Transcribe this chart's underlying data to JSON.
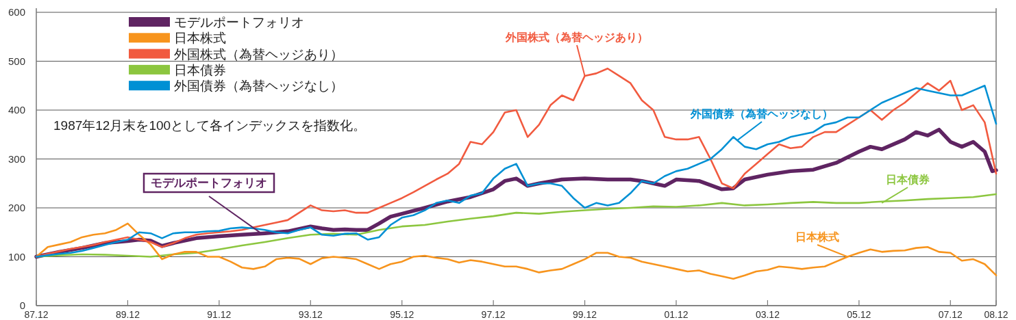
{
  "chart_data": {
    "type": "line",
    "xlim": [
      "1987-12",
      "2008-12"
    ],
    "ylim": [
      0,
      600
    ],
    "yticks": [
      0,
      100,
      200,
      300,
      400,
      500,
      600
    ],
    "xticks": [
      {
        "value": "1987-12",
        "label": "87.12"
      },
      {
        "value": "1989-12",
        "label": "89.12"
      },
      {
        "value": "1991-12",
        "label": "91.12"
      },
      {
        "value": "1993-12",
        "label": "93.12"
      },
      {
        "value": "1995-12",
        "label": "95.12"
      },
      {
        "value": "1997-12",
        "label": "97.12"
      },
      {
        "value": "1999-12",
        "label": "99.12"
      },
      {
        "value": "2001-12",
        "label": "01.12"
      },
      {
        "value": "2003-12",
        "label": "03.12"
      },
      {
        "value": "2005-12",
        "label": "05.12"
      },
      {
        "value": "2007-12",
        "label": "07.12"
      },
      {
        "value": "2008-12",
        "label": "08.12"
      }
    ],
    "grid": "y",
    "legend": "top left",
    "marker": "none",
    "line_style": "solid",
    "annotations": [
      "1987年12月末を100として各インデックスを指数化。",
      {
        "text": "モデルポートフォリオ",
        "x": "1992-11",
        "y": 148
      },
      {
        "text": "外国株式（為替ヘッジあり）",
        "x": "1999-12",
        "y": 470
      },
      {
        "text": "外国債券（為替ヘッジなし）",
        "x": "2003-04",
        "y": 338
      },
      {
        "text": "日本債券",
        "x": "2006-06",
        "y": 210
      },
      {
        "text": "日本株式",
        "x": "2005-09",
        "y": 100
      }
    ],
    "series": [
      {
        "name": "モデルポートフォリオ",
        "color": "#5f2462",
        "x": [
          "1987-12",
          "1988-06",
          "1988-12",
          "1989-06",
          "1989-12",
          "1990-03",
          "1990-06",
          "1990-09",
          "1990-12",
          "1991-06",
          "1991-12",
          "1992-06",
          "1992-12",
          "1993-06",
          "1993-12",
          "1994-03",
          "1994-06",
          "1994-09",
          "1994-12",
          "1995-03",
          "1995-06",
          "1995-09",
          "1995-12",
          "1996-06",
          "1996-12",
          "1997-06",
          "1997-12",
          "1998-03",
          "1998-06",
          "1998-09",
          "1998-12",
          "1999-06",
          "1999-12",
          "2000-06",
          "2000-12",
          "2001-03",
          "2001-06",
          "2001-09",
          "2001-12",
          "2002-06",
          "2002-12",
          "2003-03",
          "2003-06",
          "2003-12",
          "2004-06",
          "2004-12",
          "2005-06",
          "2005-12",
          "2006-03",
          "2006-06",
          "2006-12",
          "2007-03",
          "2007-06",
          "2007-09",
          "2007-12",
          "2008-03",
          "2008-06",
          "2008-09",
          "2008-11",
          "2008-12"
        ],
        "values": [
          100,
          110,
          118,
          128,
          132,
          135,
          133,
          122,
          128,
          138,
          142,
          145,
          148,
          152,
          162,
          158,
          155,
          156,
          155,
          155,
          168,
          182,
          188,
          200,
          213,
          222,
          238,
          255,
          260,
          245,
          250,
          258,
          260,
          258,
          258,
          255,
          250,
          245,
          258,
          255,
          238,
          240,
          258,
          268,
          275,
          278,
          292,
          315,
          325,
          320,
          340,
          355,
          348,
          360,
          335,
          325,
          335,
          315,
          275,
          277
        ]
      },
      {
        "name": "日本株式",
        "color": "#f7941d",
        "values": [
          100,
          120,
          125,
          130,
          140,
          145,
          148,
          155,
          168,
          145,
          125,
          95,
          105,
          110,
          110,
          100,
          100,
          90,
          78,
          75,
          80,
          95,
          98,
          96,
          85,
          97,
          100,
          98,
          95,
          85,
          75,
          85,
          90,
          100,
          102,
          98,
          95,
          88,
          93,
          90,
          85,
          80,
          80,
          75,
          68,
          72,
          75,
          85,
          95,
          108,
          108,
          100,
          98,
          90,
          85,
          80,
          75,
          70,
          72,
          65,
          60,
          55,
          62,
          70,
          73,
          80,
          78,
          75,
          78,
          80,
          90,
          100,
          108,
          115,
          110,
          112,
          113,
          118,
          120,
          110,
          108,
          92,
          95,
          85,
          62
        ]
      },
      {
        "name": "外国株式（為替ヘッジあり）",
        "color": "#f15a3f",
        "values": [
          100,
          106,
          111,
          116,
          120,
          124,
          130,
          135,
          140,
          135,
          130,
          120,
          128,
          138,
          145,
          148,
          150,
          152,
          155,
          160,
          165,
          170,
          175,
          190,
          205,
          195,
          193,
          195,
          190,
          190,
          200,
          210,
          220,
          232,
          245,
          258,
          270,
          290,
          335,
          330,
          355,
          395,
          400,
          345,
          370,
          410,
          430,
          420,
          470,
          475,
          485,
          470,
          455,
          420,
          400,
          345,
          340,
          340,
          345,
          300,
          250,
          240,
          270,
          290,
          310,
          330,
          322,
          325,
          345,
          355,
          355,
          370,
          385,
          400,
          380,
          400,
          415,
          435,
          455,
          440,
          460,
          400,
          410,
          375,
          270
        ]
      },
      {
        "name": "日本債券",
        "color": "#8cc63f",
        "x": [
          "1987-12",
          "1988-06",
          "1988-12",
          "1989-06",
          "1989-12",
          "1990-06",
          "1990-12",
          "1991-06",
          "1991-12",
          "1992-06",
          "1992-12",
          "1993-06",
          "1993-12",
          "1994-06",
          "1994-12",
          "1995-06",
          "1995-12",
          "1996-06",
          "1996-12",
          "1997-06",
          "1997-12",
          "1998-06",
          "1998-12",
          "1999-06",
          "1999-12",
          "2000-06",
          "2000-12",
          "2001-06",
          "2001-12",
          "2002-06",
          "2002-12",
          "2003-06",
          "2003-12",
          "2004-06",
          "2004-12",
          "2005-06",
          "2005-12",
          "2006-06",
          "2006-12",
          "2007-06",
          "2007-12",
          "2008-06",
          "2008-12"
        ],
        "values": [
          100,
          103,
          105,
          104,
          102,
          100,
          105,
          108,
          115,
          123,
          130,
          138,
          145,
          147,
          145,
          155,
          162,
          165,
          172,
          178,
          183,
          190,
          188,
          192,
          195,
          198,
          200,
          203,
          202,
          205,
          210,
          205,
          207,
          210,
          212,
          210,
          210,
          213,
          215,
          218,
          220,
          222,
          228
        ]
      },
      {
        "name": "外国債券（為替ヘッジなし）",
        "color": "#0090d4",
        "values": [
          100,
          103,
          106,
          108,
          112,
          118,
          124,
          130,
          135,
          150,
          148,
          138,
          148,
          150,
          150,
          152,
          153,
          158,
          160,
          158,
          155,
          150,
          148,
          155,
          160,
          145,
          143,
          147,
          148,
          135,
          140,
          165,
          180,
          185,
          195,
          210,
          215,
          210,
          225,
          230,
          260,
          280,
          290,
          245,
          250,
          250,
          245,
          220,
          200,
          210,
          205,
          210,
          230,
          255,
          250,
          265,
          275,
          280,
          290,
          300,
          320,
          345,
          325,
          320,
          330,
          335,
          345,
          350,
          355,
          370,
          375,
          385,
          385,
          400,
          415,
          425,
          435,
          445,
          440,
          435,
          430,
          430,
          440,
          450,
          372
        ]
      }
    ],
    "x": [
      "1987-12",
      "1988-03",
      "1988-06",
      "1988-09",
      "1988-12",
      "1989-03",
      "1989-06",
      "1989-09",
      "1989-12",
      "1990-03",
      "1990-06",
      "1990-09",
      "1990-12",
      "1991-03",
      "1991-06",
      "1991-09",
      "1991-12",
      "1992-03",
      "1992-06",
      "1992-09",
      "1992-12",
      "1993-03",
      "1993-06",
      "1993-09",
      "1993-12",
      "1994-03",
      "1994-06",
      "1994-09",
      "1994-12",
      "1995-03",
      "1995-06",
      "1995-09",
      "1995-12",
      "1996-03",
      "1996-06",
      "1996-09",
      "1996-12",
      "1997-03",
      "1997-06",
      "1997-09",
      "1997-12",
      "1998-03",
      "1998-06",
      "1998-09",
      "1998-12",
      "1999-03",
      "1999-06",
      "1999-09",
      "1999-12",
      "2000-03",
      "2000-06",
      "2000-09",
      "2000-12",
      "2001-03",
      "2001-06",
      "2001-09",
      "2001-12",
      "2002-03",
      "2002-06",
      "2002-09",
      "2002-12",
      "2003-03",
      "2003-06",
      "2003-09",
      "2003-12",
      "2004-03",
      "2004-06",
      "2004-09",
      "2004-12",
      "2005-03",
      "2005-06",
      "2005-09",
      "2005-12",
      "2006-03",
      "2006-06",
      "2006-09",
      "2006-12",
      "2007-03",
      "2007-06",
      "2007-09",
      "2007-12",
      "2008-03",
      "2008-06",
      "2008-09",
      "2008-12"
    ]
  }
}
